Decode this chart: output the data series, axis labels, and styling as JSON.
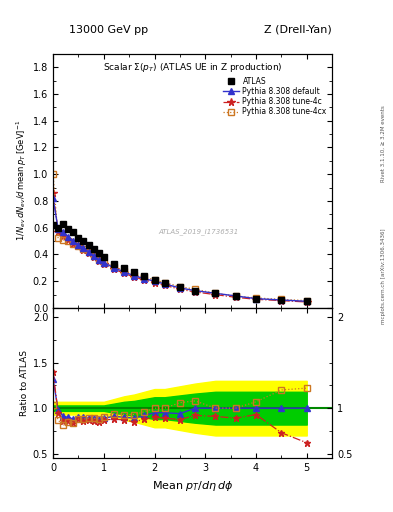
{
  "title_top_left": "13000 GeV pp",
  "title_top_right": "Z (Drell-Yan)",
  "plot_title": "Scalar Σ(p_T) (ATLAS UE in Z production)",
  "ylabel_main": "$1/N_{ev}\\,dN_{ev}/d\\,\\mathrm{mean}\\,p_T\\,[\\mathrm{GeV}]^{-1}$",
  "ylabel_ratio": "Ratio to ATLAS",
  "xlabel": "Mean $p_T/d\\eta\\,d\\phi$",
  "rivet_label": "Rivet 3.1.10, ≥ 3.2M events",
  "arxiv_label": "[arXiv:1306.3436]",
  "mcplots_label": "mcplots.cern.ch",
  "watermark": "ATLAS_2019_I1736531",
  "atlas_x": [
    0.0,
    0.1,
    0.2,
    0.3,
    0.4,
    0.5,
    0.6,
    0.7,
    0.8,
    0.9,
    1.0,
    1.2,
    1.4,
    1.6,
    1.8,
    2.0,
    2.2,
    2.5,
    2.8,
    3.2,
    3.6,
    4.0,
    4.5,
    5.0
  ],
  "atlas_y": [
    0.62,
    0.6,
    0.63,
    0.59,
    0.57,
    0.52,
    0.5,
    0.47,
    0.44,
    0.41,
    0.38,
    0.33,
    0.3,
    0.27,
    0.24,
    0.21,
    0.19,
    0.16,
    0.13,
    0.11,
    0.09,
    0.07,
    0.06,
    0.05
  ],
  "py_default_x": [
    0.0,
    0.1,
    0.2,
    0.3,
    0.4,
    0.5,
    0.6,
    0.7,
    0.8,
    0.9,
    1.0,
    1.2,
    1.4,
    1.6,
    1.8,
    2.0,
    2.2,
    2.5,
    2.8,
    3.2,
    3.6,
    4.0,
    4.5,
    5.0
  ],
  "py_default_y": [
    0.82,
    0.59,
    0.57,
    0.53,
    0.5,
    0.47,
    0.45,
    0.42,
    0.39,
    0.36,
    0.34,
    0.3,
    0.27,
    0.24,
    0.22,
    0.2,
    0.18,
    0.15,
    0.13,
    0.11,
    0.09,
    0.07,
    0.06,
    0.05
  ],
  "py_tune4c_x": [
    0.0,
    0.1,
    0.2,
    0.3,
    0.4,
    0.5,
    0.6,
    0.7,
    0.8,
    0.9,
    1.0,
    1.2,
    1.4,
    1.6,
    1.8,
    2.0,
    2.2,
    2.5,
    2.8,
    3.2,
    3.6,
    4.0,
    4.5,
    5.0
  ],
  "py_tune4c_y": [
    0.86,
    0.57,
    0.54,
    0.51,
    0.48,
    0.46,
    0.43,
    0.41,
    0.38,
    0.35,
    0.33,
    0.29,
    0.26,
    0.23,
    0.21,
    0.19,
    0.17,
    0.14,
    0.12,
    0.1,
    0.08,
    0.065,
    0.055,
    0.045
  ],
  "py_tune4cx_x": [
    0.0,
    0.1,
    0.2,
    0.3,
    0.4,
    0.5,
    0.6,
    0.7,
    0.8,
    0.9,
    1.0,
    1.2,
    1.4,
    1.6,
    1.8,
    2.0,
    2.2,
    2.5,
    2.8,
    3.2,
    3.6,
    4.0,
    4.5,
    5.0
  ],
  "py_tune4cx_y": [
    1.0,
    0.52,
    0.51,
    0.5,
    0.48,
    0.46,
    0.44,
    0.42,
    0.39,
    0.36,
    0.34,
    0.31,
    0.28,
    0.25,
    0.23,
    0.21,
    0.19,
    0.16,
    0.14,
    0.11,
    0.09,
    0.075,
    0.065,
    0.055
  ],
  "ratio_x": [
    0.0,
    0.1,
    0.2,
    0.3,
    0.4,
    0.5,
    0.6,
    0.7,
    0.8,
    0.9,
    1.0,
    1.2,
    1.4,
    1.6,
    1.8,
    2.0,
    2.2,
    2.5,
    2.8,
    3.2,
    3.6,
    4.0,
    4.5,
    5.0
  ],
  "ratio_default_y": [
    1.32,
    0.98,
    0.91,
    0.9,
    0.88,
    0.9,
    0.9,
    0.89,
    0.89,
    0.88,
    0.89,
    0.91,
    0.9,
    0.89,
    0.92,
    0.95,
    0.95,
    0.94,
    1.0,
    1.0,
    1.0,
    1.0,
    1.0,
    1.0
  ],
  "ratio_tune4c_y": [
    1.4,
    0.95,
    0.86,
    0.86,
    0.84,
    0.88,
    0.86,
    0.87,
    0.86,
    0.85,
    0.87,
    0.88,
    0.87,
    0.85,
    0.88,
    0.9,
    0.89,
    0.875,
    0.92,
    0.91,
    0.89,
    0.93,
    0.73,
    0.62
  ],
  "ratio_tune4cx_y": [
    1.03,
    0.87,
    0.81,
    0.85,
    0.84,
    0.88,
    0.88,
    0.89,
    0.89,
    0.88,
    0.9,
    0.94,
    0.93,
    0.93,
    0.96,
    1.0,
    1.0,
    1.06,
    1.08,
    1.0,
    1.0,
    1.07,
    1.2,
    1.22
  ],
  "band_green_lo": [
    0.97,
    0.97,
    0.97,
    0.97,
    0.97,
    0.97,
    0.97,
    0.97,
    0.97,
    0.97,
    0.97,
    0.95,
    0.93,
    0.92,
    0.9,
    0.88,
    0.88,
    0.86,
    0.84,
    0.82,
    0.82,
    0.82,
    0.82,
    0.82
  ],
  "band_green_hi": [
    1.03,
    1.03,
    1.03,
    1.03,
    1.03,
    1.03,
    1.03,
    1.03,
    1.03,
    1.03,
    1.03,
    1.05,
    1.07,
    1.08,
    1.1,
    1.12,
    1.12,
    1.14,
    1.16,
    1.18,
    1.18,
    1.18,
    1.18,
    1.18
  ],
  "band_yellow_lo": [
    0.93,
    0.93,
    0.93,
    0.93,
    0.93,
    0.93,
    0.93,
    0.93,
    0.93,
    0.93,
    0.93,
    0.9,
    0.87,
    0.85,
    0.82,
    0.79,
    0.79,
    0.76,
    0.73,
    0.7,
    0.7,
    0.7,
    0.7,
    0.7
  ],
  "band_yellow_hi": [
    1.07,
    1.07,
    1.07,
    1.07,
    1.07,
    1.07,
    1.07,
    1.07,
    1.07,
    1.07,
    1.07,
    1.1,
    1.13,
    1.15,
    1.18,
    1.21,
    1.21,
    1.24,
    1.27,
    1.3,
    1.3,
    1.3,
    1.3,
    1.3
  ],
  "color_atlas": "#000000",
  "color_default": "#3333cc",
  "color_tune4c": "#cc2222",
  "color_tune4cx": "#cc7722",
  "xlim": [
    0,
    5.5
  ],
  "ylim_main": [
    0,
    1.9
  ],
  "ylim_ratio": [
    0.45,
    2.1
  ]
}
